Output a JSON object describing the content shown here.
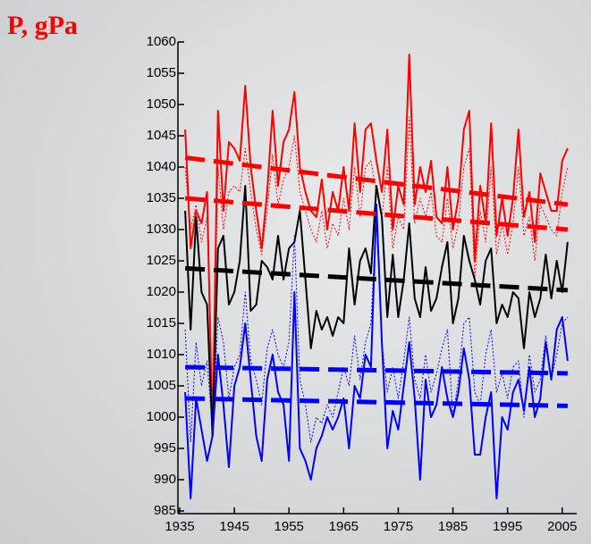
{
  "chart_data": {
    "type": "line",
    "title": "P, gPa",
    "x": [
      1936,
      1937,
      1938,
      1939,
      1940,
      1941,
      1942,
      1943,
      1944,
      1945,
      1946,
      1947,
      1948,
      1949,
      1950,
      1951,
      1952,
      1953,
      1954,
      1955,
      1956,
      1957,
      1958,
      1959,
      1960,
      1961,
      1962,
      1963,
      1964,
      1965,
      1966,
      1967,
      1968,
      1969,
      1970,
      1971,
      1972,
      1973,
      1974,
      1975,
      1976,
      1977,
      1978,
      1979,
      1980,
      1981,
      1982,
      1983,
      1984,
      1985,
      1986,
      1987,
      1988,
      1989,
      1990,
      1991,
      1992,
      1993,
      1994,
      1995,
      1996,
      1997,
      1998,
      1999,
      2000,
      2001,
      2002,
      2003,
      2004,
      2005,
      2006
    ],
    "series": [
      {
        "color": "#ff0000",
        "style": "solid",
        "width": 2,
        "values": [
          1046,
          1027,
          1033,
          1031,
          1036,
          997,
          1049,
          1033,
          1044,
          1043,
          1041,
          1053,
          1040,
          1033,
          1027,
          1036,
          1049,
          1037,
          1044,
          1046,
          1052,
          1040,
          1036,
          1033,
          1032,
          1038,
          1030,
          1036,
          1033,
          1040,
          1033,
          1047,
          1036,
          1046,
          1047,
          1041,
          1036,
          1046,
          1030,
          1037,
          1034,
          1058,
          1034,
          1040,
          1036,
          1041,
          1032,
          1031,
          1040,
          1030,
          1035,
          1046,
          1049,
          1025,
          1037,
          1031,
          1047,
          1029,
          1035,
          1029,
          1035,
          1046,
          1032,
          1036,
          1028,
          1039,
          1036,
          1033,
          1033,
          1041,
          1043
        ]
      },
      {
        "color": "#ff0000",
        "style": "dotted",
        "width": 1,
        "values": [
          1040,
          1030,
          1034,
          1028,
          1032,
          999,
          1040,
          1030,
          1036,
          1037,
          1036,
          1043,
          1036,
          1030,
          1026,
          1033,
          1042,
          1034,
          1038,
          1040,
          1045,
          1036,
          1033,
          1030,
          1028,
          1033,
          1027,
          1031,
          1029,
          1035,
          1030,
          1040,
          1032,
          1040,
          1041,
          1036,
          1032,
          1040,
          1027,
          1032,
          1030,
          1048,
          1031,
          1035,
          1032,
          1036,
          1029,
          1028,
          1035,
          1027,
          1031,
          1040,
          1043,
          1022,
          1033,
          1028,
          1040,
          1026,
          1031,
          1026,
          1031,
          1040,
          1029,
          1032,
          1025,
          1034,
          1032,
          1030,
          1029,
          1036,
          1040
        ]
      },
      {
        "color": "#000000",
        "style": "solid",
        "width": 2,
        "values": [
          1033,
          1014,
          1032,
          1020,
          1018,
          997,
          1027,
          1029,
          1018,
          1020,
          1025,
          1037,
          1017,
          1018,
          1025,
          1024,
          1022,
          1029,
          1022,
          1027,
          1028,
          1033,
          1022,
          1011,
          1017,
          1014,
          1016,
          1013,
          1016,
          1015,
          1027,
          1018,
          1025,
          1027,
          1023,
          1037,
          1032,
          1016,
          1026,
          1016,
          1022,
          1031,
          1019,
          1016,
          1024,
          1017,
          1019,
          1024,
          1028,
          1015,
          1019,
          1029,
          1025,
          1022,
          1018,
          1025,
          1027,
          1015,
          1018,
          1016,
          1020,
          1019,
          1011,
          1020,
          1016,
          1019,
          1026,
          1019,
          1025,
          1020,
          1028
        ]
      },
      {
        "color": "#0000ff",
        "style": "dotted",
        "width": 1,
        "values": [
          1014,
          996,
          1012,
          1005,
          1009,
          998,
          1016,
          1012,
          1003,
          1008,
          1010,
          1020,
          1009,
          1006,
          1002,
          1011,
          1014,
          1010,
          1008,
          1012,
          1029,
          1006,
          1002,
          996,
          1000,
          999,
          1002,
          1000,
          1004,
          1008,
          1005,
          1013,
          1006,
          1012,
          1015,
          1032,
          1012,
          1004,
          1008,
          1003,
          1009,
          1016,
          1006,
          1003,
          1010,
          1004,
          1007,
          1011,
          1014,
          1000,
          1006,
          1015,
          1016,
          1004,
          1002,
          1010,
          1014,
          1004,
          1007,
          1003,
          1008,
          1009,
          1000,
          1010,
          1004,
          1006,
          1013,
          1006,
          1010,
          1015,
          1016
        ]
      },
      {
        "color": "#0000ff",
        "style": "solid",
        "width": 2,
        "values": [
          1004,
          987,
          1003,
          998,
          993,
          997,
          1010,
          1002,
          992,
          1005,
          1008,
          1015,
          1006,
          997,
          993,
          1006,
          1010,
          1004,
          1002,
          993,
          1020,
          995,
          993,
          990,
          995,
          997,
          1000,
          998,
          1000,
          1003,
          995,
          1005,
          1003,
          1010,
          1008,
          1034,
          1012,
          995,
          1001,
          998,
          1005,
          1012,
          1003,
          990,
          1006,
          1000,
          1002,
          1008,
          1003,
          1000,
          1004,
          1011,
          1006,
          994,
          994,
          1000,
          1004,
          987,
          1000,
          998,
          1004,
          1006,
          1001,
          1008,
          1000,
          1003,
          1012,
          1006,
          1014,
          1016,
          1009
        ]
      },
      {
        "color": "#ff0000",
        "style": "dashed",
        "width": 5,
        "x": [
          1936,
          2006
        ],
        "values": [
          1041.5,
          1034
        ]
      },
      {
        "color": "#ff0000",
        "style": "dashed",
        "width": 5,
        "x": [
          1936,
          2006
        ],
        "values": [
          1035,
          1030
        ]
      },
      {
        "color": "#000000",
        "style": "dashed",
        "width": 5,
        "x": [
          1936,
          2006
        ],
        "values": [
          1023.8,
          1020.3
        ]
      },
      {
        "color": "#0000ff",
        "style": "dashed",
        "width": 5,
        "x": [
          1936,
          2006
        ],
        "values": [
          1008,
          1007
        ]
      },
      {
        "color": "#0000ff",
        "style": "dashed",
        "width": 5,
        "x": [
          1936,
          2006
        ],
        "values": [
          1003,
          1001.8
        ]
      }
    ],
    "xlim": [
      1935,
      2007
    ],
    "xticks": [
      1935,
      1945,
      1955,
      1965,
      1975,
      1985,
      1995,
      2005
    ],
    "ylim": [
      985,
      1060
    ],
    "yticks": [
      985,
      990,
      995,
      1000,
      1005,
      1010,
      1015,
      1020,
      1025,
      1030,
      1035,
      1040,
      1045,
      1050,
      1055,
      1060
    ],
    "grid": false
  }
}
